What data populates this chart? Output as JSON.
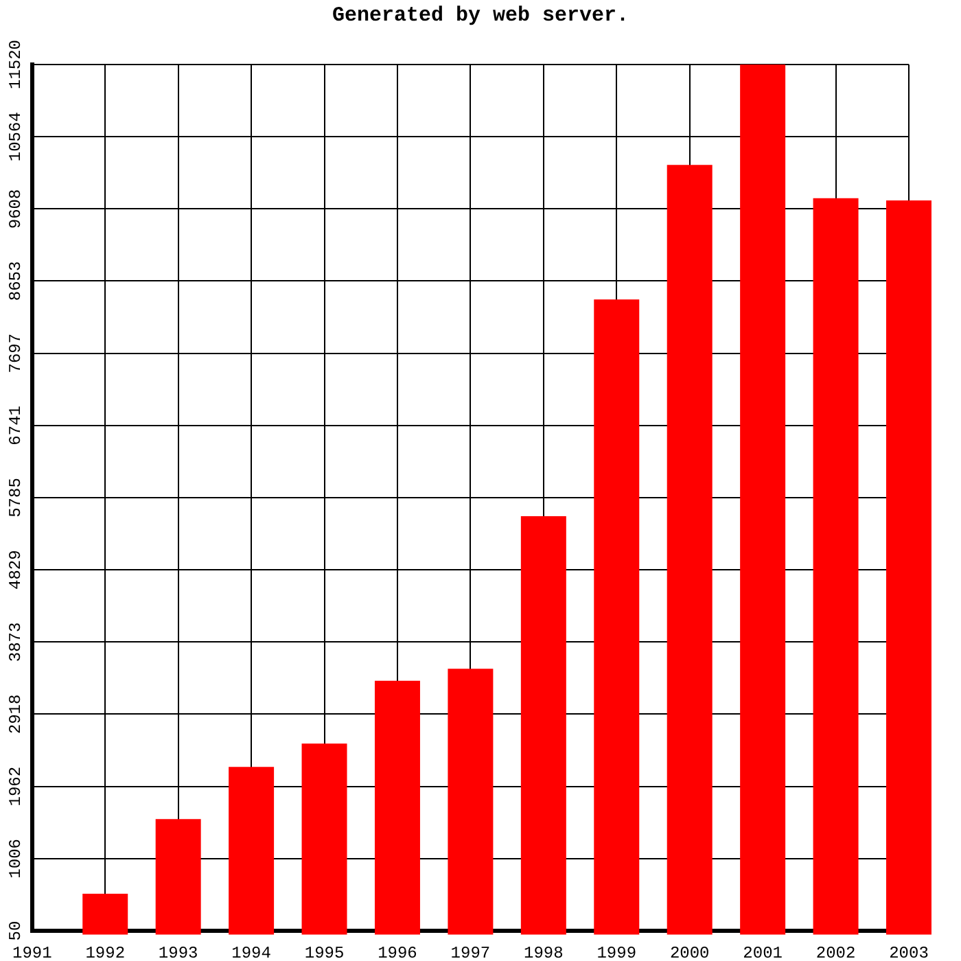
{
  "chart_data": {
    "type": "bar",
    "title": "Generated by web server.",
    "x": [
      1992,
      1993,
      1994,
      1995,
      1996,
      1997,
      1998,
      1999,
      2000,
      2001,
      2002,
      2003
    ],
    "values": [
      540,
      1530,
      2220,
      2530,
      3360,
      3520,
      5540,
      8410,
      10190,
      11520,
      9750,
      9720
    ],
    "color": "#ff0000",
    "xlim": [
      1991,
      2003
    ],
    "xticks": [
      1991,
      1992,
      1993,
      1994,
      1995,
      1996,
      1997,
      1998,
      1999,
      2000,
      2001,
      2002,
      2003
    ],
    "ylim": [
      50,
      11520
    ],
    "yticks": [
      50,
      1006,
      1962,
      2918,
      3873,
      4829,
      5785,
      6741,
      7697,
      8653,
      9608,
      10564,
      11520
    ],
    "grid": true
  }
}
